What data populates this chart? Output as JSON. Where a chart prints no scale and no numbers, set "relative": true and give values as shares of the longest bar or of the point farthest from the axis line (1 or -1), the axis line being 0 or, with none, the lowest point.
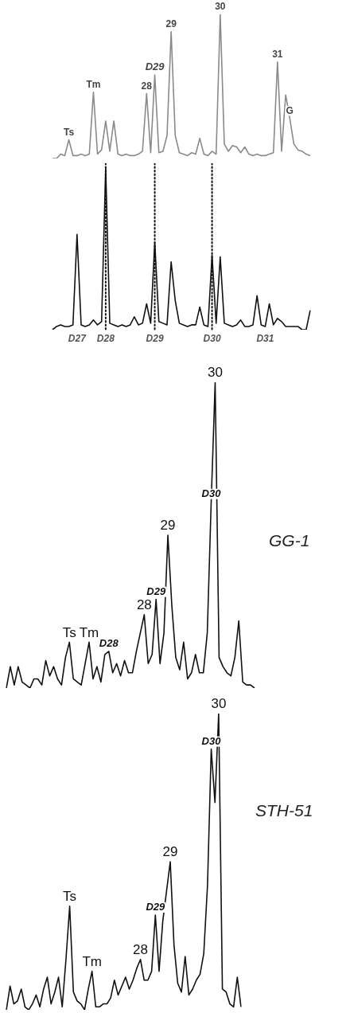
{
  "chart_data": [
    {
      "type": "line",
      "relative": true,
      "categories": [
        null,
        null,
        null,
        null,
        "Ts",
        null,
        null,
        null,
        null,
        null,
        "Tm",
        null,
        null,
        null,
        null,
        null,
        null,
        null,
        null,
        null,
        null,
        null,
        null,
        "28",
        null,
        "D29",
        null,
        null,
        null,
        "29",
        null,
        null,
        null,
        null,
        null,
        null,
        null,
        null,
        null,
        null,
        null,
        "30",
        null,
        null,
        null,
        null,
        null,
        null,
        null,
        null,
        null,
        null,
        null,
        null,
        null,
        "31",
        null,
        null,
        "G",
        null,
        null,
        null,
        null,
        null
      ],
      "series": [
        {
          "color": "#8a8a8a",
          "values": [
            0,
            0,
            0.03,
            0.02,
            0.13,
            0.02,
            0.02,
            0.03,
            0.02,
            0.03,
            0.46,
            0.03,
            0.06,
            0.26,
            0.05,
            0.26,
            0.03,
            0.02,
            0.03,
            0.02,
            0.02,
            0.03,
            0.05,
            0.45,
            0.04,
            0.58,
            0.04,
            0.05,
            0.16,
            0.88,
            0.16,
            0.04,
            0.03,
            0.02,
            0.04,
            0.03,
            0.14,
            0.03,
            0.02,
            0.05,
            0.03,
            1,
            0.1,
            0.05,
            0.09,
            0.08,
            0.04,
            0.08,
            0.03,
            0.02,
            0.03,
            0.02,
            0.02,
            0.03,
            0.04,
            0.67,
            0.05,
            0.44,
            0.28,
            0.1,
            0.06,
            0.05,
            0.03,
            0.02
          ]
        }
      ],
      "marker": "none",
      "line_style": "solid",
      "legend": false
    },
    {
      "type": "line",
      "relative": true,
      "categories": [
        null,
        null,
        null,
        null,
        null,
        null,
        "D27",
        null,
        null,
        null,
        null,
        null,
        null,
        "D28",
        null,
        null,
        null,
        null,
        null,
        null,
        null,
        null,
        null,
        null,
        null,
        "D29",
        null,
        null,
        null,
        null,
        null,
        null,
        null,
        null,
        null,
        null,
        null,
        null,
        null,
        "D30",
        null,
        null,
        null,
        null,
        null,
        null,
        null,
        null,
        null,
        null,
        null,
        null,
        "D31",
        null,
        null,
        null,
        null,
        null,
        null,
        null,
        null,
        null,
        null,
        null
      ],
      "series": [
        {
          "color": "#111111",
          "values": [
            0,
            0.02,
            0.03,
            0.02,
            0.02,
            0.03,
            0.59,
            0.03,
            0.02,
            0.03,
            0.06,
            0.03,
            0.05,
            1,
            0.04,
            0.03,
            0.02,
            0.03,
            0.02,
            0.03,
            0.08,
            0.03,
            0.04,
            0.16,
            0.04,
            0.54,
            0.05,
            0.04,
            0.03,
            0.42,
            0.18,
            0.04,
            0.03,
            0.02,
            0.03,
            0.03,
            0.14,
            0.03,
            0.02,
            0.46,
            0.04,
            0.45,
            0.04,
            0.03,
            0.02,
            0.03,
            0.06,
            0.02,
            0.02,
            0.03,
            0.21,
            0.03,
            0.02,
            0.16,
            0.03,
            0.07,
            0.05,
            0.02,
            0.02,
            0.02,
            0.02,
            0,
            0,
            0.12
          ]
        }
      ],
      "ref_lines": [
        {
          "axis": "x",
          "value": "D28",
          "color": "#111111",
          "line_style": "dotted"
        },
        {
          "axis": "x",
          "value": "D29",
          "color": "#111111",
          "line_style": "dotted"
        },
        {
          "axis": "x",
          "value": "D30",
          "color": "#111111",
          "line_style": "dotted"
        }
      ],
      "marker": "none",
      "line_style": "solid",
      "legend": false
    },
    {
      "type": "line",
      "relative": true,
      "categories": [
        null,
        null,
        null,
        null,
        null,
        null,
        null,
        null,
        null,
        null,
        null,
        null,
        null,
        null,
        null,
        null,
        "Ts",
        null,
        null,
        null,
        null,
        "Tm",
        null,
        null,
        null,
        null,
        "D28",
        null,
        null,
        null,
        null,
        null,
        null,
        null,
        null,
        "28",
        null,
        null,
        "D29",
        null,
        null,
        "29",
        null,
        null,
        null,
        null,
        null,
        null,
        null,
        null,
        null,
        null,
        "D30",
        "30",
        null,
        null,
        null,
        null,
        null,
        null,
        null,
        null,
        null,
        null
      ],
      "series": [
        {
          "name": "GG-1",
          "color": "#111111",
          "values": [
            0,
            0.07,
            0.01,
            0.07,
            0.02,
            0.01,
            0,
            0.03,
            0.03,
            0.01,
            0.09,
            0.04,
            0.07,
            0.03,
            0.01,
            0.1,
            0.15,
            0.03,
            0.02,
            0.01,
            0.08,
            0.15,
            0.03,
            0.07,
            0.02,
            0.11,
            0.12,
            0.05,
            0.08,
            0.04,
            0.09,
            0.05,
            0.05,
            0.12,
            0.18,
            0.24,
            0.08,
            0.11,
            0.29,
            0.08,
            0.18,
            0.5,
            0.27,
            0.1,
            0.06,
            0.15,
            0.03,
            0.05,
            0.11,
            0.05,
            0.05,
            0.18,
            0.61,
            1,
            0.1,
            0.07,
            0.05,
            0.04,
            0.1,
            0.22,
            0.02,
            0.01,
            0.01,
            0
          ]
        }
      ],
      "marker": "none",
      "line_style": "solid",
      "legend": false
    },
    {
      "type": "line",
      "relative": true,
      "categories": [
        null,
        null,
        null,
        null,
        null,
        null,
        null,
        null,
        null,
        null,
        null,
        null,
        null,
        null,
        null,
        null,
        null,
        "Ts",
        null,
        null,
        null,
        null,
        null,
        "Tm",
        null,
        null,
        null,
        null,
        null,
        null,
        null,
        null,
        null,
        null,
        null,
        null,
        "28",
        null,
        null,
        null,
        "D29",
        null,
        null,
        null,
        "29",
        null,
        null,
        null,
        null,
        null,
        null,
        null,
        null,
        null,
        null,
        "D30",
        null,
        "30",
        null,
        null,
        null,
        null,
        null,
        null
      ],
      "series": [
        {
          "name": "STH-51",
          "color": "#111111",
          "values": [
            0,
            0.08,
            0.02,
            0.03,
            0.07,
            0.01,
            0,
            0.02,
            0.05,
            0.01,
            0.07,
            0.11,
            0.02,
            0.06,
            0.11,
            0.01,
            0.17,
            0.35,
            0.06,
            0.03,
            0.02,
            0,
            0.07,
            0.13,
            0.01,
            0.01,
            0.02,
            0.02,
            0.04,
            0.1,
            0.05,
            0.08,
            0.11,
            0.07,
            0.1,
            0.14,
            0.17,
            0.1,
            0.1,
            0.13,
            0.32,
            0.13,
            0.3,
            0.4,
            0.5,
            0.22,
            0.09,
            0.06,
            0.18,
            0.05,
            0.07,
            0.1,
            0.12,
            0.19,
            0.42,
            0.88,
            0.7,
            1,
            0.07,
            0.06,
            0.02,
            0.01,
            0.11,
            0.01
          ]
        }
      ],
      "marker": "none",
      "line_style": "solid",
      "legend": false
    }
  ]
}
